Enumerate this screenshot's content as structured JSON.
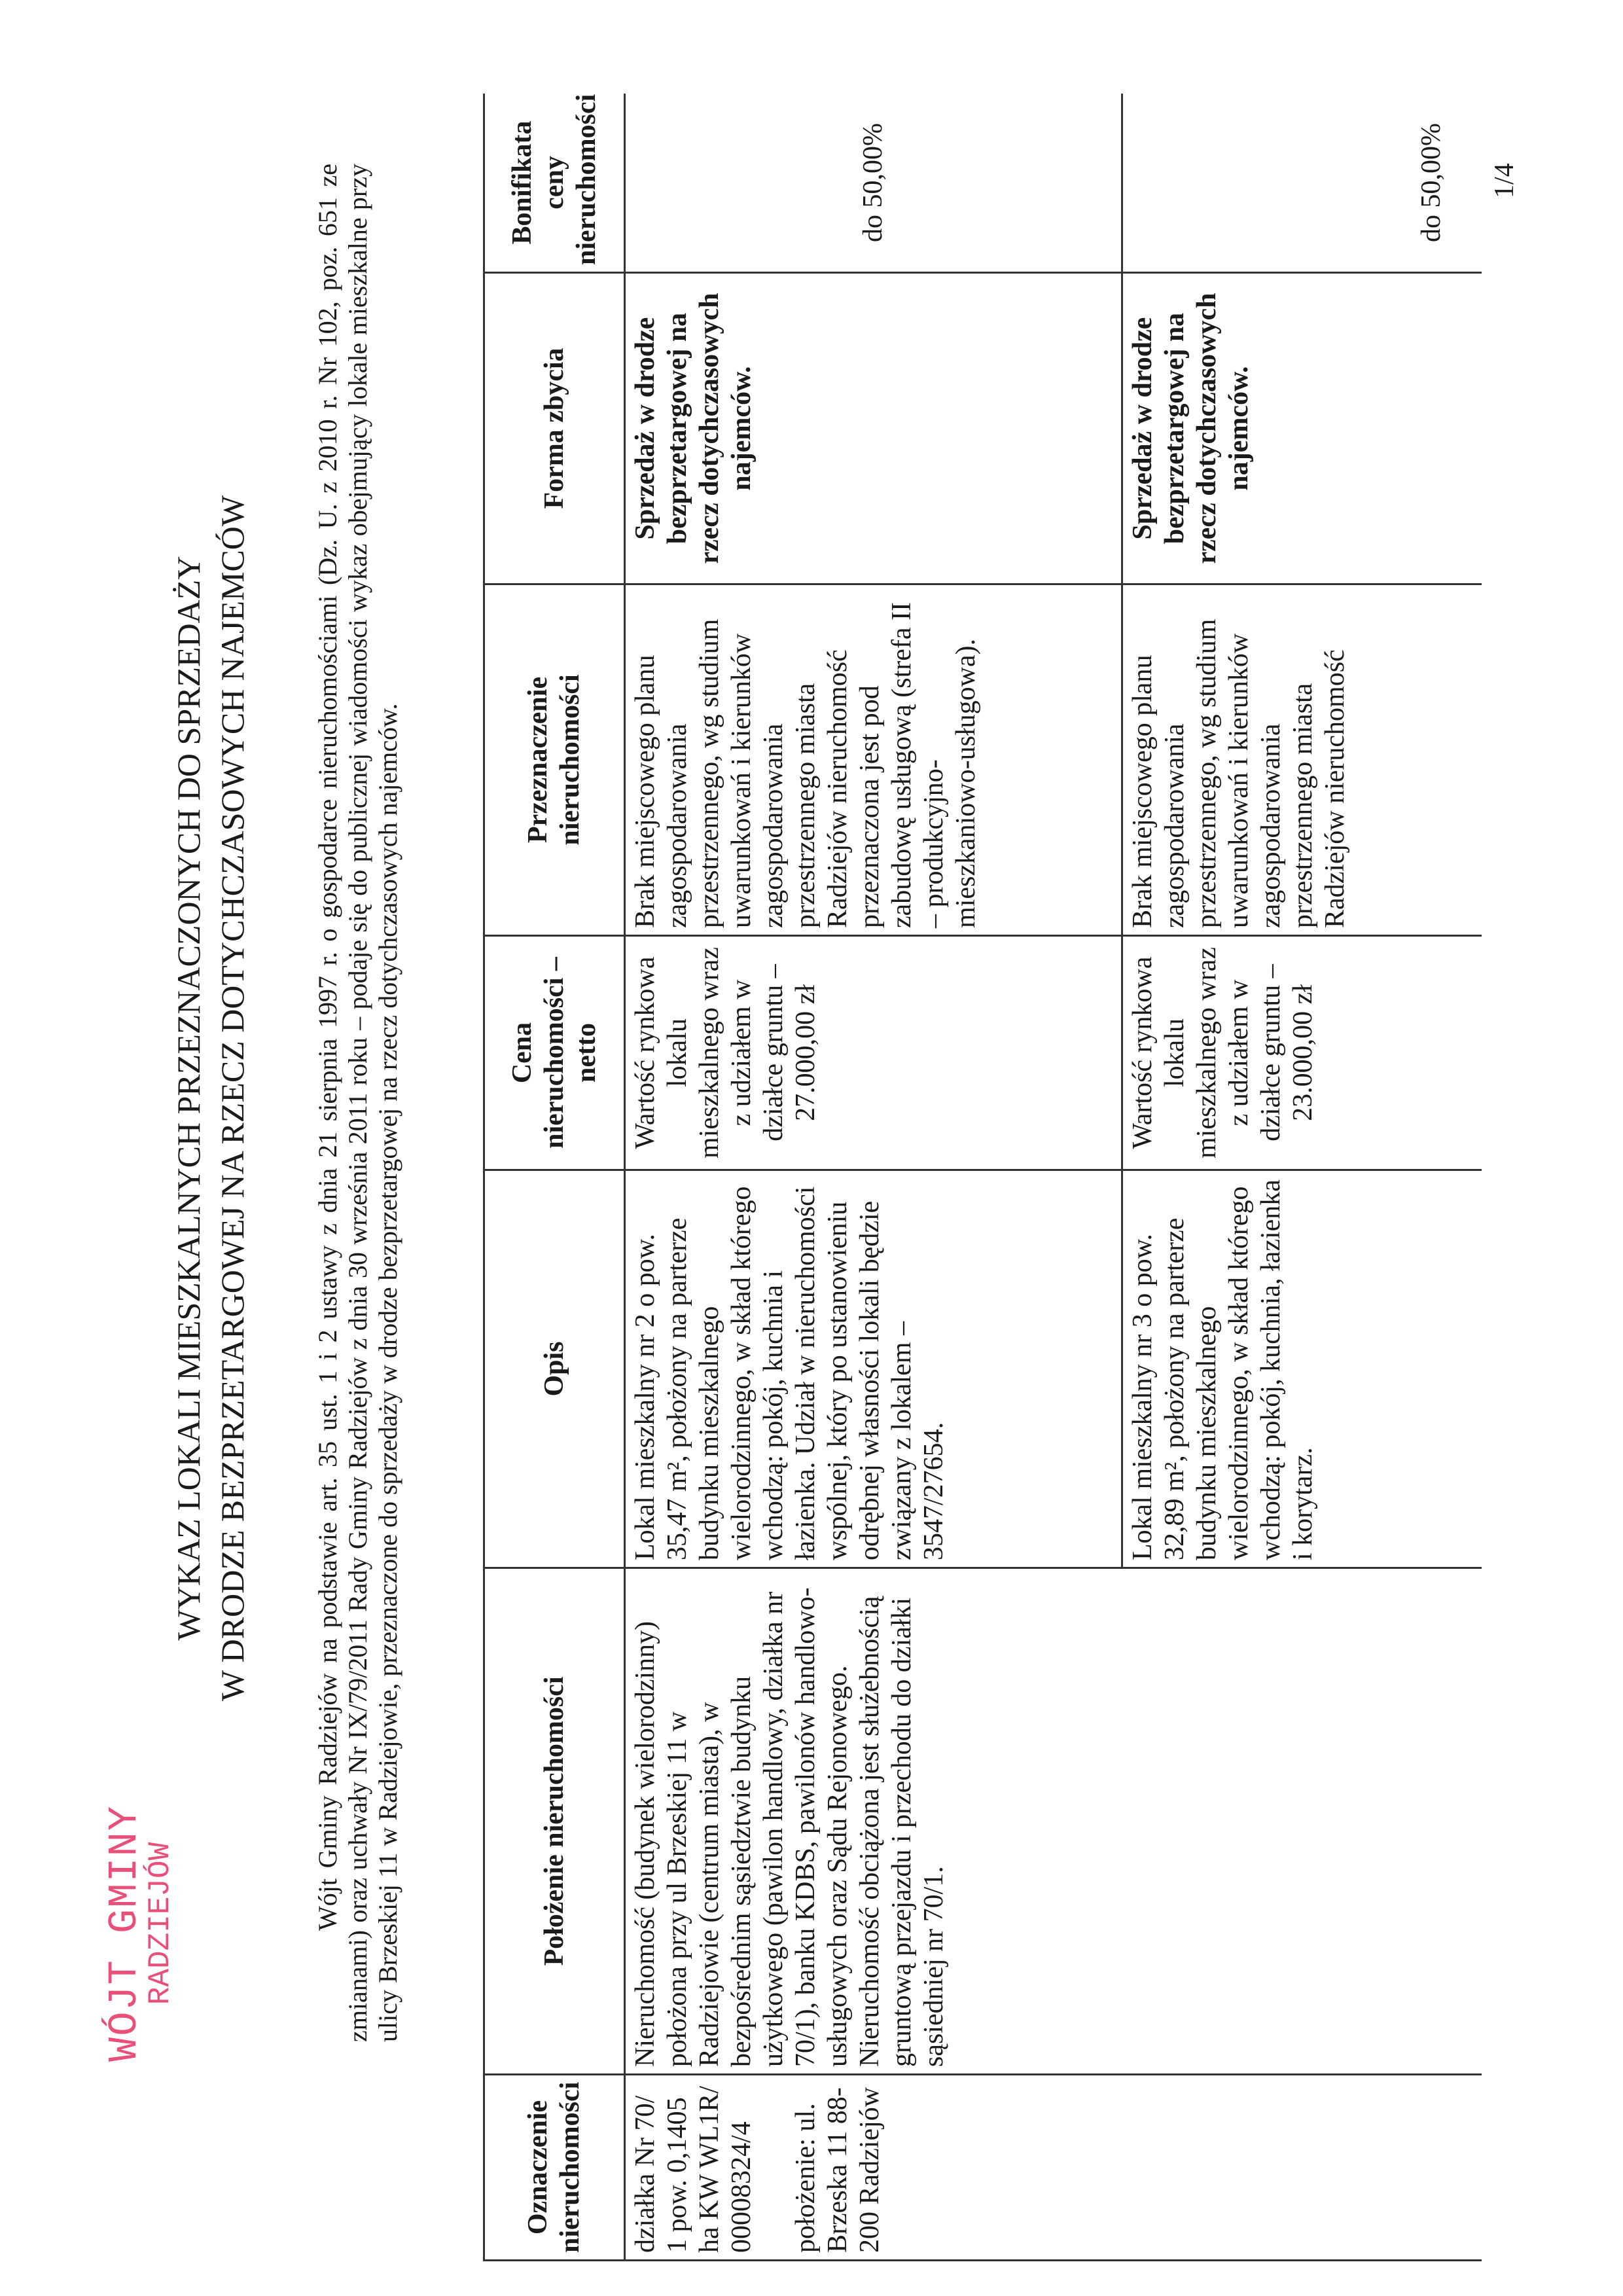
{
  "stamp": {
    "line1": "WÓJT GMINY",
    "line2": "RADZIEJÓW",
    "color": "#e8507a"
  },
  "title": {
    "line1": "WYKAZ LOKALI MIESZKALNYCH PRZEZNACZONYCH DO SPRZEDAŻY",
    "line2": "W DRODZE BEZPRZETARGOWEJ NA RZECZ DOTYCHCZASOWYCH NAJEMCÓW"
  },
  "intro": "Wójt Gminy Radziejów na podstawie art. 35 ust. 1 i 2 ustawy z dnia 21 sierpnia 1997 r. o gospodarce nieruchomościami (Dz. U. z 2010 r. Nr 102, poz. 651 ze zmianami) oraz uchwały Nr IX/79/2011 Rady Gminy Radziejów z dnia 30 września 2011 roku – podaje się do publicznej wiadomości wykaz obejmujący lokale mieszkalne przy ulicy Brzeskiej 11 w Radziejowie, przeznaczone do sprzedaży w drodze bezprzetargowej na rzecz dotychczasowych najemców.",
  "table": {
    "headers": [
      "Oznaczenie nieruchomości",
      "Położenie nieruchomości",
      "Opis",
      "Cena nieruchomości – netto",
      "Przeznaczenie nieruchomości",
      "Forma zbycia",
      "Bonifikata ceny nieruchomości"
    ],
    "oznaczenie": {
      "a": "działka Nr 70/1 pow. 0,1405 ha KW WL1R/00008324/4",
      "b": "położenie: ul. Brzeska 11 88-200 Radziejów"
    },
    "polozenie": "Nieruchomość (budynek wielorodzinny) położona przy ul Brzeskiej 11 w Radziejowie (centrum miasta), w bezpośrednim sąsiedztwie budynku użytkowego (pawilon handlowy, działka nr 70/1), banku KDBS, pawilonów handlowo-usługowych oraz Sądu Rejonowego. Nieruchomość obciążona jest służebnością gruntową przejazdu i przechodu do działki sąsiedniej nr 70/1.",
    "rows": [
      {
        "opis": "Lokal mieszkalny nr 2 o pow. 35,47 m², położony na parterze budynku mieszkalnego wielorodzinnego, w skład którego wchodzą: pokój, kuchnia i łazienka. Udział w nieruchomości wspólnej, który po ustanowieniu odrębnej własności lokali będzie związany z lokalem – 3547/27654.",
        "cena": "Wartość rynkowa lokalu mieszkalnego wraz z udziałem w działce gruntu – 27.000,00 zł",
        "przeznaczenie": "Brak miejscowego planu zagospodarowania przestrzennego, wg studium uwarunkowań i kierunków zagospodarowania przestrzennego miasta Radziejów nieruchomość przeznaczona jest pod zabudowę usługową (strefa II – produkcyjno-mieszkaniowo-usługowa).",
        "forma": "Sprzedaż w drodze bezprzetargowej na rzecz dotychczasowych najemców.",
        "bonifikata": "do 50,00%"
      },
      {
        "opis": "Lokal mieszkalny nr 3 o pow. 32,89 m², położony na parterze budynku mieszkalnego wielorodzinnego, w skład którego wchodzą: pokój, kuchnia, łazienka i korytarz.",
        "cena": "Wartość rynkowa lokalu mieszkalnego wraz z udziałem w działce gruntu – 23.000,00 zł",
        "przeznaczenie": "Brak miejscowego planu zagospodarowania przestrzennego, wg studium uwarunkowań i kierunków zagospodarowania przestrzennego miasta Radziejów nieruchomość",
        "forma": "Sprzedaż w drodze bezprzetargowej na rzecz dotychczasowych najemców.",
        "bonifikata": "do 50,00%"
      }
    ]
  },
  "page_number": "1/4"
}
